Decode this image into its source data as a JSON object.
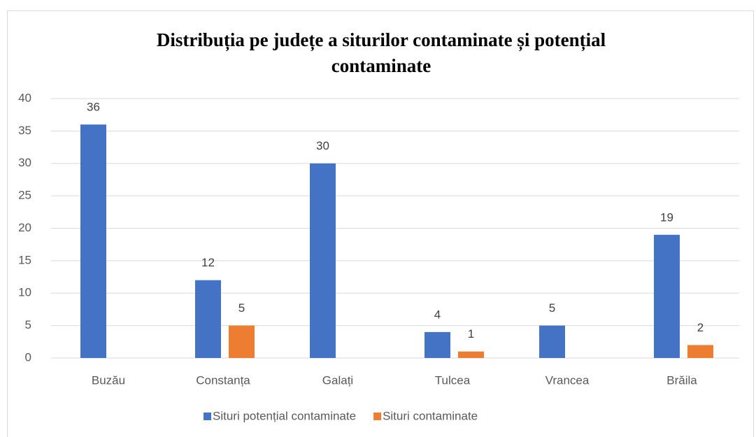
{
  "chart_data": {
    "type": "bar",
    "title": [
      "Distribuția pe județe a siturilor contaminate și potențial",
      "contaminate"
    ],
    "categories": [
      "Buzău",
      "Constanța",
      "Galați",
      "Tulcea",
      "Vrancea",
      "Brăila"
    ],
    "series": [
      {
        "name": "Situri potențial contaminate",
        "color": "#4472c4",
        "values": [
          36,
          12,
          30,
          4,
          5,
          19
        ]
      },
      {
        "name": "Situri contaminate",
        "color": "#ed7d31",
        "values": [
          null,
          5,
          null,
          1,
          null,
          2
        ]
      }
    ],
    "ylim": [
      0,
      40
    ],
    "yticks": [
      0,
      5,
      10,
      15,
      20,
      25,
      30,
      35,
      40
    ],
    "grid": true,
    "legend": "bottom"
  }
}
